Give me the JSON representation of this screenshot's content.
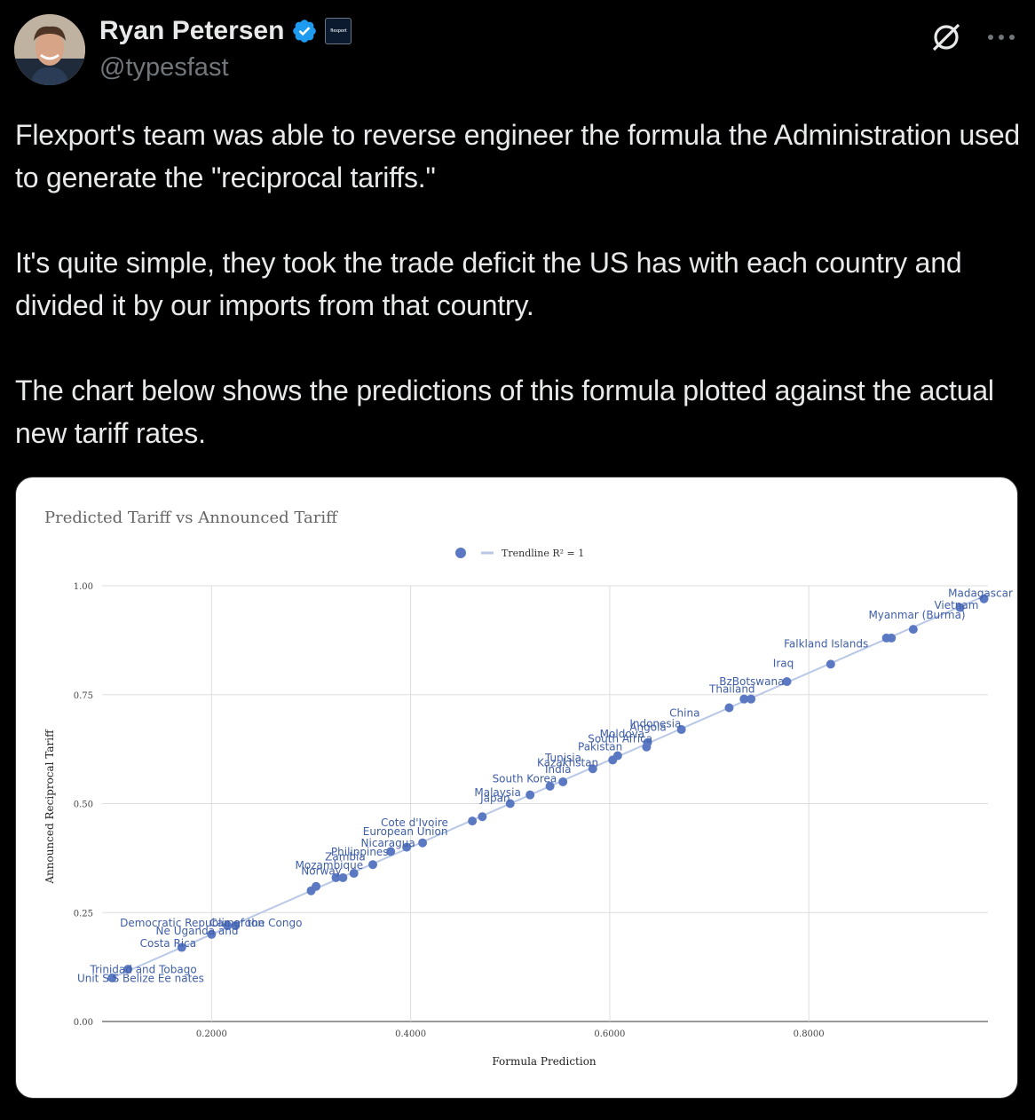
{
  "author": {
    "name": "Ryan Petersen",
    "handle": "@typesfast",
    "verified": true,
    "affiliate_badge": "flexport"
  },
  "icons": [
    "avatar",
    "verified-badge-icon",
    "flexport-badge-icon",
    "grok-icon",
    "more-icon"
  ],
  "tweet": {
    "paragraphs": [
      "Flexport's team was able to reverse engineer the formula the Administration used to generate the \"reciprocal tariffs.\"",
      "It's quite simple, they took the trade deficit the US has with each country and divided it by our imports from that country.",
      "The chart below shows the predictions of this formula  plotted against the actual new tariff rates."
    ]
  },
  "colors": {
    "point": "#5b78c2",
    "trendline": "#b8c8e6",
    "label": "#3f5ea8"
  },
  "chart_data": {
    "type": "scatter",
    "title": "Predicted Tariff vs Announced Tariff",
    "legend": "Trendline R² = 1",
    "legend_position": "top",
    "xlabel": "Formula Prediction",
    "ylabel": "Announced Reciprocal Tariff",
    "xlim": [
      0.09,
      0.98
    ],
    "ylim": [
      0,
      1
    ],
    "xticks": [
      "0.2000",
      "0.4000",
      "0.6000",
      "0.8000"
    ],
    "xtick_values": [
      0.2,
      0.4,
      0.6,
      0.8
    ],
    "yticks": [
      "0.00",
      "0.25",
      "0.50",
      "0.75",
      "1.00"
    ],
    "ytick_values": [
      0,
      0.25,
      0.5,
      0.75,
      1.0
    ],
    "grid": true,
    "trendline": {
      "slope": 1,
      "intercept": 0
    },
    "points": [
      {
        "x": 0.1,
        "y": 0.1
      },
      {
        "x": 0.116,
        "y": 0.12
      },
      {
        "x": 0.17,
        "y": 0.17
      },
      {
        "x": 0.2,
        "y": 0.2
      },
      {
        "x": 0.216,
        "y": 0.22
      },
      {
        "x": 0.224,
        "y": 0.22
      },
      {
        "x": 0.3,
        "y": 0.3
      },
      {
        "x": 0.305,
        "y": 0.31
      },
      {
        "x": 0.325,
        "y": 0.33
      },
      {
        "x": 0.332,
        "y": 0.33
      },
      {
        "x": 0.343,
        "y": 0.34
      },
      {
        "x": 0.362,
        "y": 0.36
      },
      {
        "x": 0.38,
        "y": 0.39
      },
      {
        "x": 0.396,
        "y": 0.4
      },
      {
        "x": 0.412,
        "y": 0.41
      },
      {
        "x": 0.462,
        "y": 0.46
      },
      {
        "x": 0.472,
        "y": 0.47
      },
      {
        "x": 0.5,
        "y": 0.5
      },
      {
        "x": 0.52,
        "y": 0.52
      },
      {
        "x": 0.54,
        "y": 0.54
      },
      {
        "x": 0.553,
        "y": 0.55
      },
      {
        "x": 0.583,
        "y": 0.58
      },
      {
        "x": 0.603,
        "y": 0.6
      },
      {
        "x": 0.608,
        "y": 0.61
      },
      {
        "x": 0.637,
        "y": 0.63
      },
      {
        "x": 0.638,
        "y": 0.64
      },
      {
        "x": 0.672,
        "y": 0.67
      },
      {
        "x": 0.72,
        "y": 0.72
      },
      {
        "x": 0.735,
        "y": 0.74
      },
      {
        "x": 0.742,
        "y": 0.74
      },
      {
        "x": 0.778,
        "y": 0.78
      },
      {
        "x": 0.822,
        "y": 0.82
      },
      {
        "x": 0.878,
        "y": 0.88
      },
      {
        "x": 0.883,
        "y": 0.88
      },
      {
        "x": 0.905,
        "y": 0.9
      },
      {
        "x": 0.952,
        "y": 0.95
      },
      {
        "x": 0.976,
        "y": 0.97
      }
    ],
    "annotations": [
      {
        "text": "Madagascar",
        "x": 0.94,
        "y": 0.975
      },
      {
        "text": "Vietnam",
        "x": 0.926,
        "y": 0.947
      },
      {
        "text": "Myanmar (Burma)",
        "x": 0.86,
        "y": 0.925
      },
      {
        "text": "Falkland Islands",
        "x": 0.775,
        "y": 0.858
      },
      {
        "text": "Iraq",
        "x": 0.764,
        "y": 0.814
      },
      {
        "text": "BzBotswana",
        "x": 0.71,
        "y": 0.772
      },
      {
        "text": "Thailand",
        "x": 0.7,
        "y": 0.755
      },
      {
        "text": "China",
        "x": 0.66,
        "y": 0.7
      },
      {
        "text": "Indonesia",
        "x": 0.62,
        "y": 0.675
      },
      {
        "text": "Angola",
        "x": 0.62,
        "y": 0.667
      },
      {
        "text": "Moldova",
        "x": 0.59,
        "y": 0.652
      },
      {
        "text": "South Africa",
        "x": 0.578,
        "y": 0.641
      },
      {
        "text": "Pakistan",
        "x": 0.568,
        "y": 0.622
      },
      {
        "text": "Tunisia",
        "x": 0.535,
        "y": 0.597
      },
      {
        "text": "Kazakhstan",
        "x": 0.527,
        "y": 0.586
      },
      {
        "text": "India",
        "x": 0.535,
        "y": 0.57
      },
      {
        "text": "South Korea",
        "x": 0.482,
        "y": 0.549
      },
      {
        "text": "Malaysia",
        "x": 0.464,
        "y": 0.517
      },
      {
        "text": "Japan",
        "x": 0.47,
        "y": 0.504
      },
      {
        "text": "Cote d'Ivoire",
        "x": 0.37,
        "y": 0.448
      },
      {
        "text": "European Union",
        "x": 0.352,
        "y": 0.428
      },
      {
        "text": "Nicaragua",
        "x": 0.35,
        "y": 0.401
      },
      {
        "text": "Philippines",
        "x": 0.32,
        "y": 0.381
      },
      {
        "text": "Zambia",
        "x": 0.314,
        "y": 0.37
      },
      {
        "text": "Mozambique",
        "x": 0.284,
        "y": 0.35
      },
      {
        "text": "Norway",
        "x": 0.29,
        "y": 0.337
      },
      {
        "text": "Democratic Republic of the Congo",
        "x": 0.108,
        "y": 0.218
      },
      {
        "text": "Cameroon",
        "x": 0.198,
        "y": 0.218
      },
      {
        "text": "Ne Uganda and",
        "x": 0.144,
        "y": 0.2
      },
      {
        "text": "Costa Rica",
        "x": 0.128,
        "y": 0.171
      },
      {
        "text": "Trinidad and Tobago",
        "x": 0.078,
        "y": 0.111
      },
      {
        "text": "Unit S S Belize Ee nates",
        "x": 0.065,
        "y": 0.091
      }
    ]
  }
}
